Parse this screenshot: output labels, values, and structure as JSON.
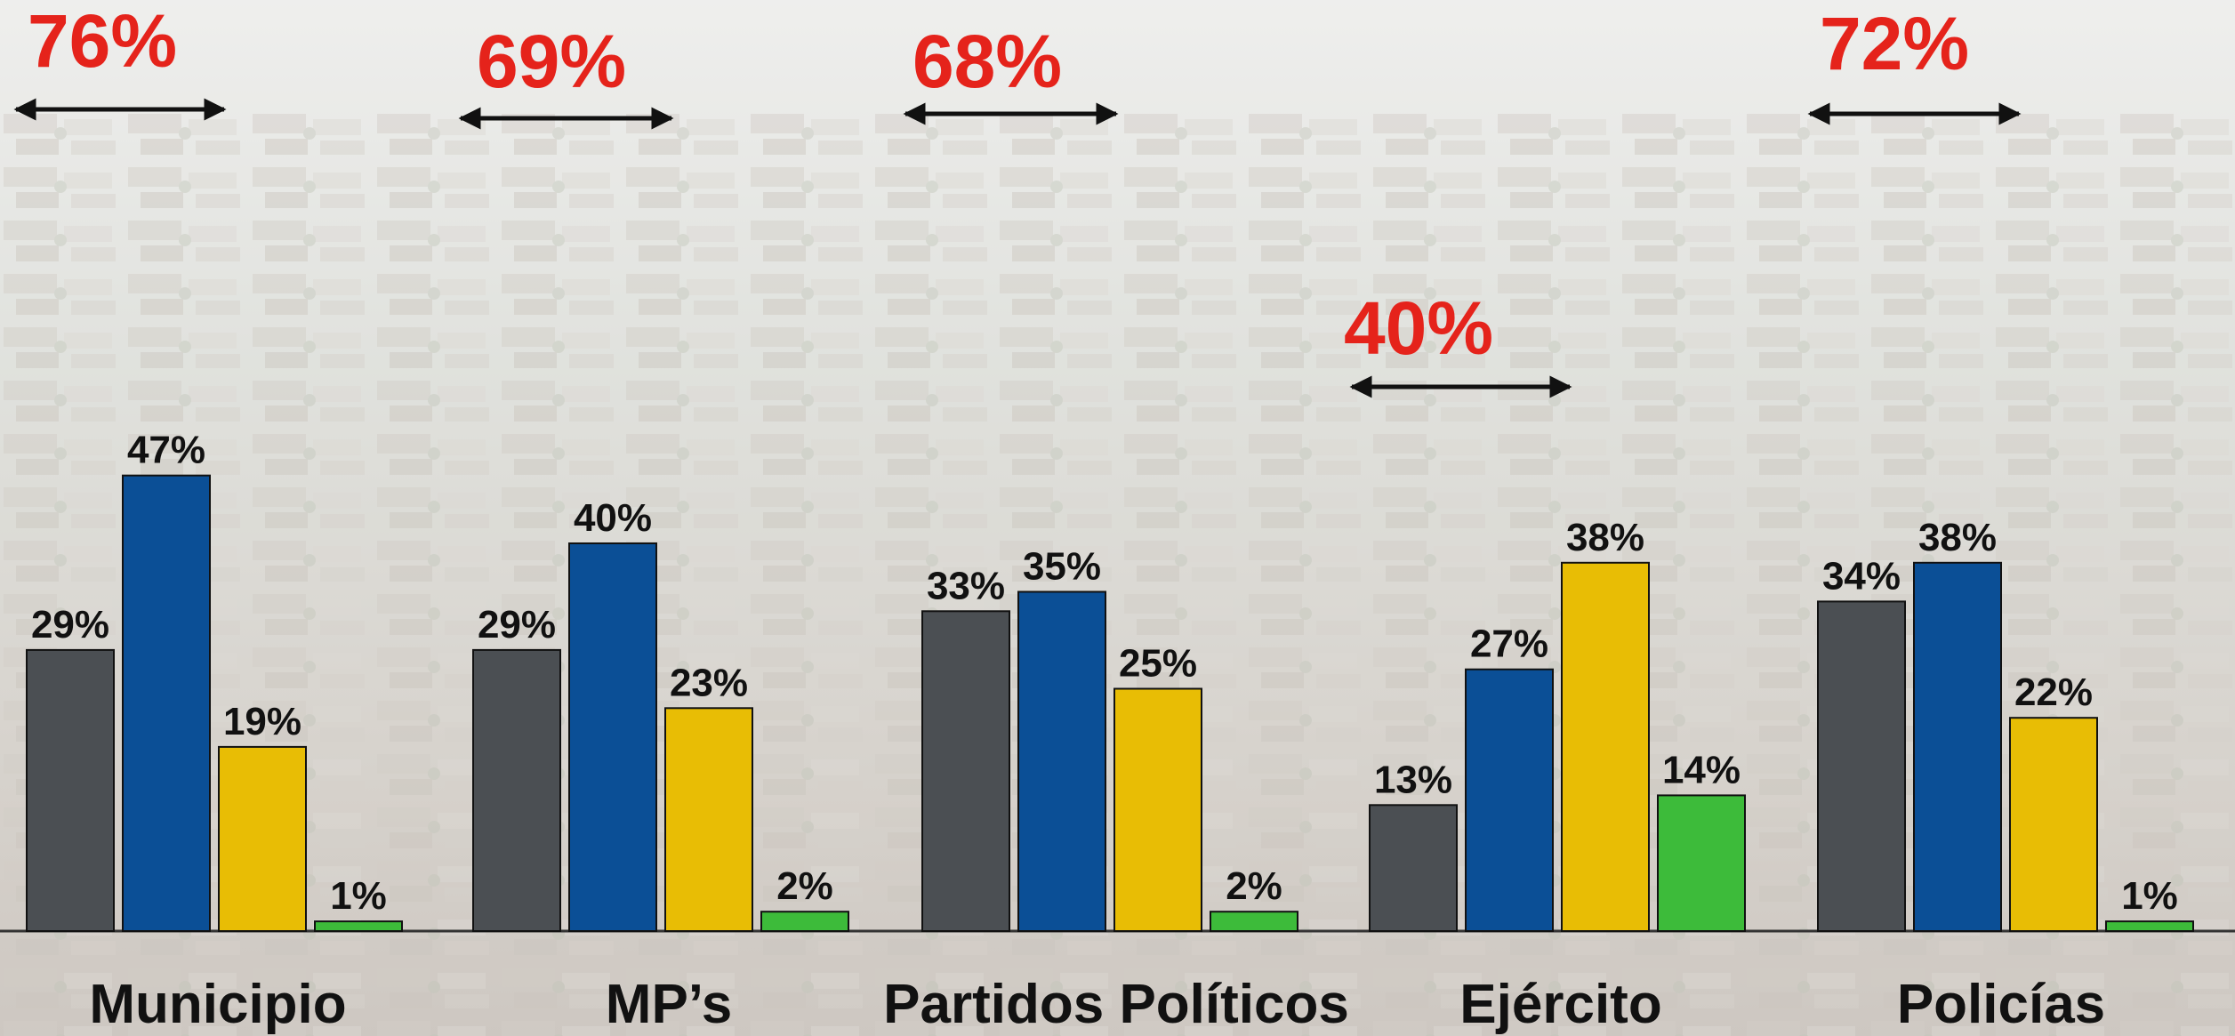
{
  "chart_data": {
    "type": "bar",
    "categories": [
      "Municipio",
      "MP’s",
      "Partidos Políticos",
      "Ejército",
      "Policías"
    ],
    "series": [
      {
        "values": [
          29,
          29,
          33,
          13,
          34
        ]
      },
      {
        "values": [
          47,
          40,
          35,
          27,
          38
        ]
      },
      {
        "values": [
          19,
          23,
          25,
          38,
          22
        ]
      },
      {
        "values": [
          1,
          2,
          2,
          14,
          1
        ]
      }
    ],
    "value_labels": [
      [
        "29%",
        "47%",
        "19%",
        "1%"
      ],
      [
        "29%",
        "40%",
        "23%",
        "2%"
      ],
      [
        "33%",
        "35%",
        "25%",
        "2%"
      ],
      [
        "13%",
        "27%",
        "38%",
        "14%"
      ],
      [
        "34%",
        "38%",
        "22%",
        "1%"
      ]
    ],
    "totals": [
      {
        "category": "Municipio",
        "label": "76%"
      },
      {
        "category": "MP’s",
        "label": "69%"
      },
      {
        "category": "Partidos Políticos",
        "label": "68%"
      },
      {
        "category": "Ejército",
        "label": "40%"
      },
      {
        "category": "Policías",
        "label": "72%"
      }
    ],
    "ylim": [
      0,
      50
    ],
    "grid": false,
    "legend": "none",
    "colors": {
      "series": [
        "#4b4f53",
        "#0b4f96",
        "#e8bd05",
        "#3dbb3a"
      ],
      "totals": "#e5231b",
      "arrow": "#111111",
      "baseline": "#333333"
    }
  }
}
